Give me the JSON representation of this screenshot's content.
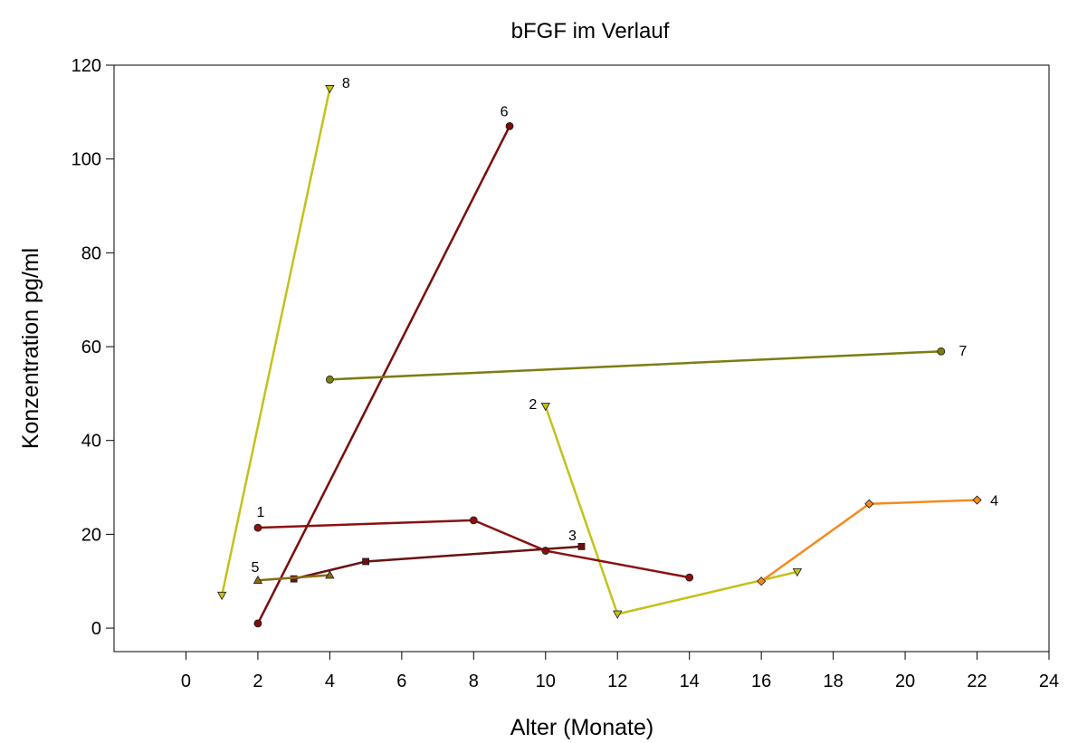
{
  "chart_data": {
    "type": "line",
    "title": "bFGF im Verlauf",
    "xlabel": "Alter (Monate)",
    "ylabel": "Konzentration pg/ml",
    "xlim": [
      -2,
      24
    ],
    "ylim": [
      -5,
      120
    ],
    "xticks": [
      0,
      2,
      4,
      6,
      8,
      10,
      12,
      14,
      16,
      18,
      20,
      22,
      24
    ],
    "yticks": [
      0,
      20,
      40,
      60,
      80,
      100,
      120
    ],
    "grid": false,
    "legend": "none",
    "series": [
      {
        "name": "8",
        "color": "#c2c21a",
        "marker": "triangle-down",
        "x": [
          1,
          4
        ],
        "y": [
          7,
          115
        ]
      },
      {
        "name": "6",
        "color": "#7a0b0b",
        "marker": "circle",
        "x": [
          2,
          9
        ],
        "y": [
          1,
          107
        ]
      },
      {
        "name": "7",
        "color": "#7d7d10",
        "marker": "circle",
        "x": [
          4,
          21
        ],
        "y": [
          53,
          59
        ]
      },
      {
        "name": "2",
        "color": "#c2c21a",
        "marker": "triangle-down",
        "x": [
          10,
          12,
          17
        ],
        "y": [
          47.3,
          3,
          12
        ]
      },
      {
        "name": "4",
        "color": "#f58a1f",
        "marker": "diamond",
        "x": [
          16,
          19,
          22
        ],
        "y": [
          10,
          26.5,
          27.3
        ]
      },
      {
        "name": "1",
        "color": "#8b1111",
        "marker": "circle",
        "x": [
          2,
          8,
          10,
          14
        ],
        "y": [
          21.4,
          23,
          16.5,
          10.8
        ]
      },
      {
        "name": "3",
        "color": "#6b1010",
        "marker": "square",
        "x": [
          3,
          5,
          11
        ],
        "y": [
          10.5,
          14.2,
          17.4
        ]
      },
      {
        "name": "5",
        "color": "#8b6a14",
        "marker": "triangle-up",
        "x": [
          2,
          4
        ],
        "y": [
          10.2,
          11.3
        ]
      }
    ],
    "annotations": [
      {
        "text": "8",
        "x": 4,
        "y": 115
      },
      {
        "text": "6",
        "x": 9,
        "y": 107
      },
      {
        "text": "7",
        "x": 21,
        "y": 59
      },
      {
        "text": "2",
        "x": 10,
        "y": 47.3
      },
      {
        "text": "4",
        "x": 22,
        "y": 27.3
      },
      {
        "text": "1",
        "x": 2,
        "y": 21.4
      },
      {
        "text": "3",
        "x": 11,
        "y": 17.4
      },
      {
        "text": "5",
        "x": 2,
        "y": 10.2
      }
    ]
  }
}
